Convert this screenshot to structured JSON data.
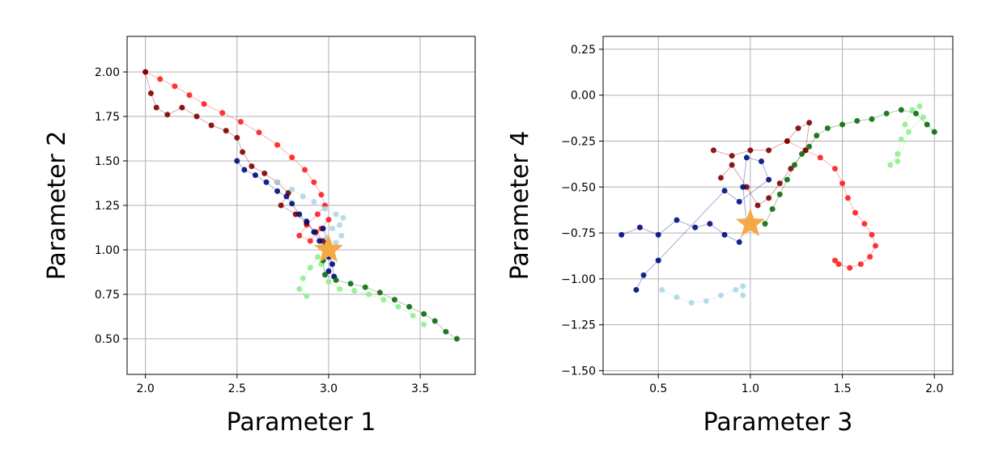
{
  "chart_data": [
    {
      "type": "scatter",
      "title": "",
      "xlabel": "Parameter 1",
      "ylabel": "Parameter 2",
      "xlim": [
        1.9,
        3.8
      ],
      "ylim": [
        0.3,
        2.2
      ],
      "xticks": [
        2.0,
        2.5,
        3.0,
        3.5
      ],
      "xtick_labels": [
        "2.0",
        "2.5",
        "3.0",
        "3.5"
      ],
      "yticks": [
        0.5,
        0.75,
        1.0,
        1.25,
        1.5,
        1.75,
        2.0
      ],
      "ytick_labels": [
        "0.50",
        "0.75",
        "1.00",
        "1.25",
        "1.50",
        "1.75",
        "2.00"
      ],
      "grid": true,
      "true_value": {
        "x": 3.0,
        "y": 1.0,
        "marker": "star",
        "color": "#f5a945"
      },
      "series": [
        {
          "color": "#ff1f1f",
          "points": [
            [
              2.0,
              2.0
            ],
            [
              2.08,
              1.96
            ],
            [
              2.16,
              1.92
            ],
            [
              2.24,
              1.87
            ],
            [
              2.32,
              1.82
            ],
            [
              2.42,
              1.77
            ],
            [
              2.52,
              1.72
            ],
            [
              2.62,
              1.66
            ],
            [
              2.72,
              1.59
            ],
            [
              2.8,
              1.52
            ],
            [
              2.87,
              1.45
            ],
            [
              2.92,
              1.38
            ],
            [
              2.96,
              1.31
            ],
            [
              2.98,
              1.25
            ],
            [
              2.94,
              1.2
            ],
            [
              2.88,
              1.14
            ],
            [
              2.84,
              1.08
            ],
            [
              2.9,
              1.05
            ],
            [
              2.96,
              1.12
            ],
            [
              3.0,
              1.17
            ]
          ]
        },
        {
          "color": "#800000",
          "points": [
            [
              2.0,
              2.0
            ],
            [
              2.03,
              1.88
            ],
            [
              2.06,
              1.8
            ],
            [
              2.12,
              1.76
            ],
            [
              2.2,
              1.8
            ],
            [
              2.28,
              1.75
            ],
            [
              2.36,
              1.7
            ],
            [
              2.44,
              1.67
            ],
            [
              2.5,
              1.63
            ],
            [
              2.53,
              1.55
            ],
            [
              2.58,
              1.47
            ],
            [
              2.65,
              1.43
            ],
            [
              2.72,
              1.38
            ],
            [
              2.78,
              1.32
            ],
            [
              2.74,
              1.25
            ],
            [
              2.82,
              1.2
            ],
            [
              2.88,
              1.15
            ],
            [
              2.93,
              1.1
            ],
            [
              2.97,
              1.05
            ]
          ]
        },
        {
          "color": "#000c80",
          "points": [
            [
              2.5,
              1.5
            ],
            [
              2.54,
              1.45
            ],
            [
              2.6,
              1.42
            ],
            [
              2.66,
              1.38
            ],
            [
              2.72,
              1.33
            ],
            [
              2.77,
              1.3
            ],
            [
              2.8,
              1.26
            ],
            [
              2.84,
              1.2
            ],
            [
              2.88,
              1.16
            ],
            [
              2.92,
              1.1
            ],
            [
              2.95,
              1.05
            ],
            [
              2.98,
              1.0
            ],
            [
              3.0,
              0.96
            ],
            [
              3.02,
              0.92
            ],
            [
              3.0,
              0.88
            ],
            [
              3.03,
              0.85
            ],
            [
              3.0,
              1.04
            ],
            [
              2.97,
              1.12
            ]
          ]
        },
        {
          "color": "#add8e6",
          "points": [
            [
              2.72,
              1.38
            ],
            [
              2.8,
              1.34
            ],
            [
              2.86,
              1.3
            ],
            [
              2.92,
              1.27
            ],
            [
              2.98,
              1.23
            ],
            [
              3.04,
              1.2
            ],
            [
              3.08,
              1.18
            ],
            [
              3.06,
              1.14
            ],
            [
              3.02,
              1.12
            ],
            [
              3.07,
              1.08
            ],
            [
              3.04,
              1.04
            ],
            [
              2.99,
              1.07
            ]
          ]
        },
        {
          "color": "#90ee90",
          "points": [
            [
              2.88,
              0.74
            ],
            [
              2.84,
              0.78
            ],
            [
              2.86,
              0.84
            ],
            [
              2.9,
              0.9
            ],
            [
              2.94,
              0.96
            ],
            [
              2.96,
              0.92
            ],
            [
              3.0,
              0.82
            ],
            [
              3.06,
              0.78
            ],
            [
              3.14,
              0.77
            ],
            [
              3.22,
              0.75
            ],
            [
              3.3,
              0.72
            ],
            [
              3.38,
              0.68
            ],
            [
              3.46,
              0.63
            ],
            [
              3.52,
              0.58
            ]
          ]
        },
        {
          "color": "#0c6b0c",
          "points": [
            [
              2.98,
              1.02
            ],
            [
              2.97,
              0.94
            ],
            [
              2.98,
              0.86
            ],
            [
              3.04,
              0.83
            ],
            [
              3.12,
              0.81
            ],
            [
              3.2,
              0.79
            ],
            [
              3.28,
              0.76
            ],
            [
              3.36,
              0.72
            ],
            [
              3.44,
              0.68
            ],
            [
              3.52,
              0.64
            ],
            [
              3.58,
              0.6
            ],
            [
              3.64,
              0.54
            ],
            [
              3.7,
              0.5
            ]
          ]
        }
      ]
    },
    {
      "type": "scatter",
      "title": "",
      "xlabel": "Parameter 3",
      "ylabel": "Parameter 4",
      "xlim": [
        0.2,
        2.1
      ],
      "ylim": [
        -1.52,
        0.32
      ],
      "xticks": [
        0.5,
        1.0,
        1.5,
        2.0
      ],
      "xtick_labels": [
        "0.5",
        "1.0",
        "1.5",
        "2.0"
      ],
      "yticks": [
        -1.5,
        -1.25,
        -1.0,
        -0.75,
        -0.5,
        -0.25,
        0.0,
        0.25
      ],
      "ytick_labels": [
        "−1.50",
        "−1.25",
        "−1.00",
        "−0.75",
        "−0.50",
        "−0.25",
        "0.00",
        "0.25"
      ],
      "grid": true,
      "true_value": {
        "x": 1.0,
        "y": -0.7,
        "marker": "star",
        "color": "#f5a945"
      },
      "series": [
        {
          "color": "#ff1f1f",
          "points": [
            [
              1.2,
              -0.25
            ],
            [
              1.3,
              -0.3
            ],
            [
              1.38,
              -0.34
            ],
            [
              1.46,
              -0.4
            ],
            [
              1.5,
              -0.48
            ],
            [
              1.53,
              -0.56
            ],
            [
              1.57,
              -0.64
            ],
            [
              1.62,
              -0.7
            ],
            [
              1.66,
              -0.76
            ],
            [
              1.68,
              -0.82
            ],
            [
              1.65,
              -0.88
            ],
            [
              1.6,
              -0.92
            ],
            [
              1.54,
              -0.94
            ],
            [
              1.48,
              -0.92
            ],
            [
              1.46,
              -0.9
            ]
          ]
        },
        {
          "color": "#800000",
          "points": [
            [
              0.8,
              -0.3
            ],
            [
              0.9,
              -0.33
            ],
            [
              1.0,
              -0.3
            ],
            [
              1.1,
              -0.3
            ],
            [
              1.2,
              -0.25
            ],
            [
              1.26,
              -0.18
            ],
            [
              1.32,
              -0.15
            ],
            [
              1.3,
              -0.3
            ],
            [
              1.22,
              -0.4
            ],
            [
              1.16,
              -0.48
            ],
            [
              1.1,
              -0.56
            ],
            [
              1.04,
              -0.6
            ],
            [
              0.98,
              -0.5
            ],
            [
              0.9,
              -0.38
            ],
            [
              0.84,
              -0.45
            ]
          ]
        },
        {
          "color": "#000c80",
          "points": [
            [
              0.3,
              -0.76
            ],
            [
              0.4,
              -0.72
            ],
            [
              0.5,
              -0.76
            ],
            [
              0.6,
              -0.68
            ],
            [
              0.7,
              -0.72
            ],
            [
              0.78,
              -0.7
            ],
            [
              0.86,
              -0.76
            ],
            [
              0.94,
              -0.8
            ],
            [
              0.98,
              -0.7
            ],
            [
              0.96,
              -0.5
            ],
            [
              0.98,
              -0.34
            ],
            [
              1.06,
              -0.36
            ],
            [
              1.1,
              -0.46
            ],
            [
              0.94,
              -0.58
            ],
            [
              0.86,
              -0.52
            ],
            [
              0.5,
              -0.9
            ],
            [
              0.42,
              -0.98
            ],
            [
              0.38,
              -1.06
            ]
          ]
        },
        {
          "color": "#add8e6",
          "points": [
            [
              0.52,
              -1.06
            ],
            [
              0.6,
              -1.1
            ],
            [
              0.68,
              -1.13
            ],
            [
              0.76,
              -1.12
            ],
            [
              0.84,
              -1.09
            ],
            [
              0.92,
              -1.06
            ],
            [
              0.96,
              -1.04
            ],
            [
              0.96,
              -1.09
            ]
          ]
        },
        {
          "color": "#90ee90",
          "points": [
            [
              1.76,
              -0.38
            ],
            [
              1.8,
              -0.32
            ],
            [
              1.82,
              -0.24
            ],
            [
              1.84,
              -0.16
            ],
            [
              1.88,
              -0.08
            ],
            [
              1.92,
              -0.06
            ],
            [
              1.94,
              -0.12
            ],
            [
              1.86,
              -0.2
            ],
            [
              1.8,
              -0.36
            ]
          ]
        },
        {
          "color": "#0c6b0c",
          "points": [
            [
              1.08,
              -0.7
            ],
            [
              1.12,
              -0.62
            ],
            [
              1.16,
              -0.54
            ],
            [
              1.2,
              -0.46
            ],
            [
              1.24,
              -0.38
            ],
            [
              1.28,
              -0.32
            ],
            [
              1.32,
              -0.28
            ],
            [
              1.36,
              -0.22
            ],
            [
              1.42,
              -0.18
            ],
            [
              1.5,
              -0.16
            ],
            [
              1.58,
              -0.14
            ],
            [
              1.66,
              -0.13
            ],
            [
              1.74,
              -0.1
            ],
            [
              1.82,
              -0.08
            ],
            [
              1.9,
              -0.1
            ],
            [
              1.96,
              -0.16
            ],
            [
              2.0,
              -0.2
            ]
          ]
        }
      ]
    }
  ]
}
